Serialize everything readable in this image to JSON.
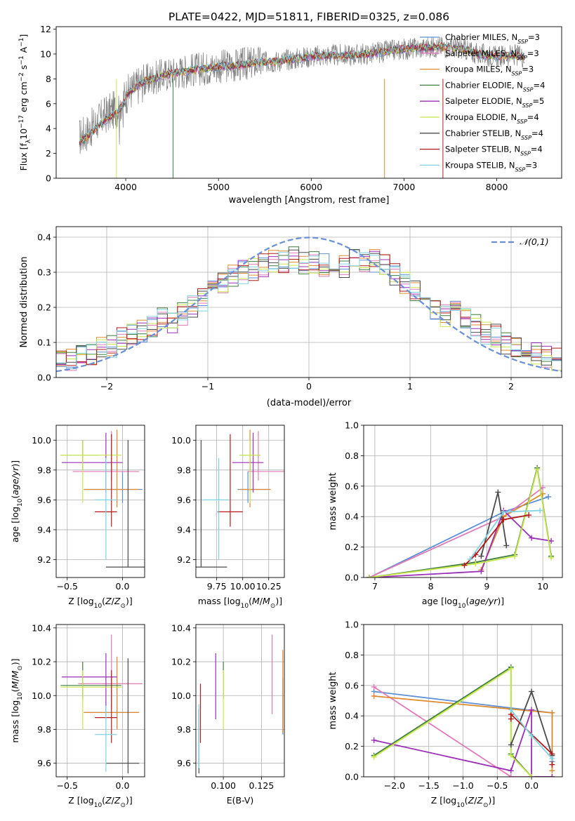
{
  "figure": {
    "title": "PLATE=0422, MJD=51811, FIBERID=0325, z=0.086"
  },
  "colors": {
    "miles_chabrier": "#5b8fd6",
    "miles_salpeter": "#e07ab8",
    "miles_kroupa": "#e08a2e",
    "elodie_chabrier": "#3f7d3f",
    "elodie_salpeter": "#9b2fb8",
    "elodie_kroupa": "#c8e84a",
    "stelib_chabrier": "#4a4a4a",
    "stelib_salpeter": "#b51a1a",
    "stelib_kroupa": "#7fd3e0",
    "data_spectrum": "#808080",
    "normal_curve": "#6a8fd9"
  },
  "chart_data": [
    {
      "id": "spectrum",
      "type": "line",
      "xlabel": "wavelength [Angstrom, rest frame]",
      "ylabel": "Flux [f_λ 10^-17 erg cm^-2 s^-1 A^-1]",
      "xlim": [
        3250,
        8700
      ],
      "ylim": [
        0,
        12.2
      ],
      "xticks": [
        4000,
        5000,
        6000,
        7000,
        8000
      ],
      "yticks": [
        0,
        2,
        4,
        6,
        8,
        10,
        12
      ],
      "legend": [
        "Chabrier MILES, N_SSP=3",
        "Salpeter MILES, N_SSP=3",
        "Kroupa MILES, N_SSP=3",
        "Chabrier ELODIE, N_SSP=4",
        "Salpeter ELODIE, N_SSP=5",
        "Kroupa ELODIE, N_SSP=4",
        "Chabrier STELIB, N_SSP=4",
        "Salpeter STELIB, N_SSP=4",
        "Kroupa STELIB, N_SSP=3"
      ],
      "legend_placement": "right",
      "series_continuum": {
        "x": [
          3500,
          3600,
          3700,
          3800,
          3900,
          4000,
          4100,
          4200,
          4400,
          4600,
          4800,
          5000,
          5200,
          5400,
          5600,
          5800,
          6000,
          6200,
          6400,
          6600,
          6800,
          7000,
          7200,
          7400,
          7600,
          7800,
          8000,
          8200,
          8300
        ],
        "y": [
          3.3,
          3.8,
          4.6,
          5.2,
          5.6,
          6.7,
          7.3,
          7.8,
          8.3,
          8.6,
          8.8,
          9.0,
          9.1,
          9.3,
          9.4,
          9.6,
          9.8,
          9.9,
          9.9,
          10.0,
          10.2,
          10.4,
          10.5,
          10.6,
          10.5,
          10.0,
          9.8,
          9.9,
          9.8
        ]
      }
    },
    {
      "id": "residuals",
      "type": "line",
      "xlabel": "(data-model)/error",
      "ylabel": "Normed distribution",
      "xlim": [
        -2.5,
        2.5
      ],
      "ylim": [
        0,
        0.43
      ],
      "xticks": [
        -2,
        -1,
        0,
        1,
        2
      ],
      "yticks": [
        0.0,
        0.1,
        0.2,
        0.3,
        0.4
      ],
      "legend_label": "𝒩(0,1)",
      "legend_placement": "top-right",
      "curve": {
        "mean": 0,
        "sigma": 1
      },
      "hist_bins_x": [
        -2.5,
        -2.4,
        -2.3,
        -2.2,
        -2.1,
        -2.0,
        -1.9,
        -1.8,
        -1.7,
        -1.6,
        -1.5,
        -1.4,
        -1.3,
        -1.2,
        -1.1,
        -1.0,
        -0.9,
        -0.8,
        -0.7,
        -0.6,
        -0.5,
        -0.4,
        -0.3,
        -0.2,
        -0.1,
        0.0,
        0.1,
        0.2,
        0.3,
        0.4,
        0.5,
        0.6,
        0.7,
        0.8,
        0.9,
        1.0,
        1.1,
        1.2,
        1.3,
        1.4,
        1.5,
        1.6,
        1.7,
        1.8,
        1.9,
        2.0,
        2.1,
        2.2,
        2.3,
        2.4,
        2.5
      ],
      "hist_base": [
        0.05,
        0.055,
        0.06,
        0.07,
        0.08,
        0.09,
        0.11,
        0.12,
        0.13,
        0.15,
        0.17,
        0.16,
        0.18,
        0.2,
        0.22,
        0.25,
        0.27,
        0.29,
        0.3,
        0.31,
        0.32,
        0.33,
        0.33,
        0.34,
        0.33,
        0.33,
        0.32,
        0.33,
        0.32,
        0.34,
        0.33,
        0.33,
        0.32,
        0.29,
        0.27,
        0.25,
        0.22,
        0.2,
        0.18,
        0.19,
        0.17,
        0.15,
        0.13,
        0.12,
        0.1,
        0.08,
        0.08,
        0.07,
        0.06,
        0.05
      ]
    },
    {
      "id": "age_vs_Z",
      "type": "scatter",
      "xlabel": "Z [log10(Z/Z☉)]",
      "ylabel": "age [log10(age/yr)]",
      "xlim": [
        -0.6,
        0.2
      ],
      "ylim": [
        9.08,
        10.1
      ],
      "xticks": [
        -0.5,
        0.0
      ],
      "yticks": [
        9.2,
        9.4,
        9.6,
        9.8,
        10.0
      ],
      "points": [
        {
          "series": "Chabrier MILES",
          "x": 0.0,
          "y": 9.67,
          "xerr": [
            0.35,
            0.18
          ],
          "yerr": [
            0.09,
            0.12
          ]
        },
        {
          "series": "Salpeter MILES",
          "x": -0.1,
          "y": 9.79,
          "xerr": [
            0.35,
            0.25
          ],
          "yerr": [
            0.06,
            0.27
          ]
        },
        {
          "series": "Kroupa MILES",
          "x": -0.05,
          "y": 9.67,
          "xerr": [
            0.3,
            0.2
          ],
          "yerr": [
            0.12,
            0.4
          ]
        },
        {
          "series": "Chabrier ELODIE",
          "x": -0.36,
          "y": 9.9,
          "xerr": [
            0.2,
            0.15
          ],
          "yerr": [
            0.1,
            0.1
          ]
        },
        {
          "series": "Salpeter ELODIE",
          "x": -0.15,
          "y": 9.85,
          "xerr": [
            0.4,
            0.15
          ],
          "yerr": [
            0.2,
            0.2
          ]
        },
        {
          "series": "Kroupa ELODIE",
          "x": -0.36,
          "y": 9.9,
          "xerr": [
            0.2,
            0.35
          ],
          "yerr": [
            0.32,
            0.1
          ]
        },
        {
          "series": "Chabrier STELIB",
          "x": 0.05,
          "y": 9.15,
          "xerr": [
            0.2,
            0.18
          ],
          "yerr": [
            0.0,
            0.85
          ]
        },
        {
          "series": "Salpeter STELIB",
          "x": -0.1,
          "y": 9.52,
          "xerr": [
            0.15,
            0.05
          ],
          "yerr": [
            0.1,
            0.52
          ]
        },
        {
          "series": "Kroupa STELIB",
          "x": -0.15,
          "y": 9.6,
          "xerr": [
            0.1,
            0.1
          ],
          "yerr": [
            0.4,
            0.28
          ]
        }
      ]
    },
    {
      "id": "age_vs_mass",
      "type": "scatter",
      "xlabel": "mass [log10(M/M☉)]",
      "ylabel": "",
      "xlim": [
        9.55,
        10.4
      ],
      "ylim": [
        9.08,
        10.1
      ],
      "xticks": [
        9.75,
        10.0,
        10.25
      ],
      "yticks": [
        9.2,
        9.4,
        9.6,
        9.8,
        10.0
      ],
      "points": [
        {
          "series": "Chabrier MILES",
          "x": 10.05,
          "y": 9.67,
          "xerr": [
            0.1,
            0.2
          ],
          "yerr": [
            0.09,
            0.12
          ]
        },
        {
          "series": "Salpeter MILES",
          "x": 10.15,
          "y": 9.79,
          "xerr": [
            0.1,
            0.25
          ],
          "yerr": [
            0.06,
            0.27
          ]
        },
        {
          "series": "Kroupa MILES",
          "x": 10.07,
          "y": 9.67,
          "xerr": [
            0.1,
            0.2
          ],
          "yerr": [
            0.12,
            0.4
          ]
        },
        {
          "series": "Chabrier ELODIE",
          "x": 10.07,
          "y": 9.9,
          "xerr": [
            0.1,
            0.1
          ],
          "yerr": [
            0.1,
            0.1
          ]
        },
        {
          "series": "Salpeter ELODIE",
          "x": 10.1,
          "y": 9.85,
          "xerr": [
            0.2,
            0.1
          ],
          "yerr": [
            0.2,
            0.2
          ]
        },
        {
          "series": "Kroupa ELODIE",
          "x": 10.07,
          "y": 9.9,
          "xerr": [
            0.1,
            0.1
          ],
          "yerr": [
            0.32,
            0.1
          ]
        },
        {
          "series": "Chabrier STELIB",
          "x": 9.6,
          "y": 9.15,
          "xerr": [
            0.05,
            0.25
          ],
          "yerr": [
            0.0,
            0.85
          ]
        },
        {
          "series": "Salpeter STELIB",
          "x": 9.88,
          "y": 9.52,
          "xerr": [
            0.12,
            0.12
          ],
          "yerr": [
            0.1,
            0.52
          ]
        },
        {
          "series": "Kroupa STELIB",
          "x": 9.77,
          "y": 9.6,
          "xerr": [
            0.15,
            0.1
          ],
          "yerr": [
            0.4,
            0.28
          ]
        }
      ]
    },
    {
      "id": "weight_vs_age",
      "type": "line",
      "xlabel": "age [log10(age/yr)]",
      "ylabel": "mass weight",
      "xlim": [
        6.8,
        10.35
      ],
      "ylim": [
        0,
        1.0
      ],
      "xticks": [
        7,
        8,
        9,
        10
      ],
      "yticks": [
        0.0,
        0.2,
        0.4,
        0.6,
        0.8,
        1.0
      ],
      "series": [
        {
          "key": "miles_chabrier",
          "x": [
            6.9,
            9.3,
            10.1
          ],
          "y": [
            0.0,
            0.43,
            0.53
          ]
        },
        {
          "key": "miles_salpeter",
          "x": [
            6.9,
            9.3,
            10.0
          ],
          "y": [
            0.0,
            0.4,
            0.59
          ]
        },
        {
          "key": "miles_kroupa",
          "x": [
            8.9,
            9.3,
            10.0
          ],
          "y": [
            0.05,
            0.4,
            0.55
          ]
        },
        {
          "key": "elodie_chabrier",
          "x": [
            6.9,
            8.8,
            9.5,
            9.9,
            10.15
          ],
          "y": [
            0.0,
            0.1,
            0.15,
            0.72,
            0.14
          ]
        },
        {
          "key": "elodie_salpeter",
          "x": [
            6.9,
            8.9,
            9.3,
            9.8,
            10.15
          ],
          "y": [
            0.0,
            0.04,
            0.44,
            0.26,
            0.24
          ]
        },
        {
          "key": "elodie_kroupa",
          "x": [
            6.9,
            8.8,
            9.5,
            9.9,
            10.15
          ],
          "y": [
            0.0,
            0.09,
            0.14,
            0.71,
            0.13
          ]
        },
        {
          "key": "stelib_chabrier",
          "x": [
            8.9,
            9.2,
            9.35
          ],
          "y": [
            0.14,
            0.56,
            0.21
          ]
        },
        {
          "key": "stelib_salpeter",
          "x": [
            8.6,
            8.8,
            9.3,
            9.75
          ],
          "y": [
            0.08,
            0.15,
            0.38,
            0.41
          ]
        },
        {
          "key": "stelib_kroupa",
          "x": [
            8.7,
            9.3,
            9.95
          ],
          "y": [
            0.12,
            0.43,
            0.44
          ]
        }
      ]
    },
    {
      "id": "mass_vs_Z",
      "type": "scatter",
      "xlabel": "Z [log10(Z/Z☉)]",
      "ylabel": "mass [log10(M/M☉)]",
      "xlim": [
        -0.6,
        0.2
      ],
      "ylim": [
        9.52,
        10.42
      ],
      "xticks": [
        -0.5,
        0.0
      ],
      "yticks": [
        9.6,
        9.8,
        10.0,
        10.2,
        10.4
      ],
      "points": [
        {
          "series": "Chabrier MILES",
          "x": -0.05,
          "y": 9.9,
          "xerr": [
            0.3,
            0.2
          ],
          "yerr": [
            0.1,
            0.2
          ]
        },
        {
          "series": "Salpeter MILES",
          "x": -0.1,
          "y": 10.07,
          "xerr": [
            0.3,
            0.28
          ],
          "yerr": [
            0.15,
            0.29
          ]
        },
        {
          "series": "Kroupa MILES",
          "x": -0.05,
          "y": 9.9,
          "xerr": [
            0.3,
            0.2
          ],
          "yerr": [
            0.1,
            0.33
          ]
        },
        {
          "series": "Chabrier ELODIE",
          "x": -0.36,
          "y": 10.06,
          "xerr": [
            0.2,
            0.35
          ],
          "yerr": [
            0.08,
            0.14
          ]
        },
        {
          "series": "Salpeter ELODIE",
          "x": -0.15,
          "y": 10.11,
          "xerr": [
            0.4,
            0.1
          ],
          "yerr": [
            0.23,
            0.14
          ]
        },
        {
          "series": "Kroupa ELODIE",
          "x": -0.36,
          "y": 10.05,
          "xerr": [
            0.2,
            0.35
          ],
          "yerr": [
            0.25,
            0.1
          ]
        },
        {
          "series": "Chabrier STELIB",
          "x": 0.05,
          "y": 9.6,
          "xerr": [
            0.2,
            0.1
          ],
          "yerr": [
            0.06,
            0.62
          ]
        },
        {
          "series": "Salpeter STELIB",
          "x": -0.1,
          "y": 9.87,
          "xerr": [
            0.15,
            0.05
          ],
          "yerr": [
            0.15,
            0.28
          ]
        },
        {
          "series": "Kroupa STELIB",
          "x": -0.15,
          "y": 9.77,
          "xerr": [
            0.1,
            0.1
          ],
          "yerr": [
            0.22,
            0.17
          ]
        }
      ]
    },
    {
      "id": "mass_vs_ebv",
      "type": "scatter",
      "xlabel": "E(B-V)",
      "ylabel": "",
      "xlim": [
        0.082,
        0.14
      ],
      "ylim": [
        9.52,
        10.42
      ],
      "xticks": [
        0.1,
        0.125
      ],
      "yticks": [
        9.6,
        9.8,
        10.0,
        10.2,
        10.4
      ],
      "points": [
        {
          "series": "Chabrier MILES",
          "x": 0.139,
          "y": 9.9,
          "yerr": [
            0.13,
            0.2
          ]
        },
        {
          "series": "Salpeter MILES",
          "x": 0.132,
          "y": 10.07,
          "yerr": [
            0.18,
            0.29
          ]
        },
        {
          "series": "Kroupa MILES",
          "x": 0.139,
          "y": 9.9,
          "yerr": [
            0.12,
            0.37
          ]
        },
        {
          "series": "Chabrier ELODIE",
          "x": 0.1,
          "y": 10.06,
          "yerr": [
            0.08,
            0.14
          ]
        },
        {
          "series": "Salpeter ELODIE",
          "x": 0.095,
          "y": 10.11,
          "yerr": [
            0.25,
            0.14
          ]
        },
        {
          "series": "Kroupa ELODIE",
          "x": 0.1,
          "y": 10.05,
          "yerr": [
            0.25,
            0.1
          ]
        },
        {
          "series": "Chabrier STELIB",
          "x": 0.084,
          "y": 9.6,
          "yerr": [
            0.06,
            0.32
          ]
        },
        {
          "series": "Salpeter STELIB",
          "x": 0.085,
          "y": 9.87,
          "yerr": [
            0.15,
            0.2
          ]
        },
        {
          "series": "Kroupa STELIB",
          "x": 0.084,
          "y": 9.77,
          "yerr": [
            0.2,
            0.18
          ]
        }
      ]
    },
    {
      "id": "weight_vs_Z",
      "type": "line",
      "xlabel": "Z [log10(Z/Z☉)]",
      "ylabel": "mass weight",
      "xlim": [
        -2.45,
        0.45
      ],
      "ylim": [
        0,
        1.0
      ],
      "xticks": [
        -2.0,
        -1.5,
        -1.0,
        -0.5,
        0.0
      ],
      "yticks": [
        0.0,
        0.2,
        0.4,
        0.6,
        0.8,
        1.0
      ],
      "series": [
        {
          "key": "miles_chabrier",
          "x": [
            -2.3,
            0.3,
            0.3
          ],
          "y": [
            0.56,
            0.42,
            0.1
          ]
        },
        {
          "key": "miles_salpeter",
          "x": [
            -2.3,
            -0.3,
            0.3
          ],
          "y": [
            0.59,
            0.0,
            0.0
          ]
        },
        {
          "key": "miles_kroupa",
          "x": [
            -2.3,
            0.3,
            0.3
          ],
          "y": [
            0.53,
            0.42,
            0.04
          ]
        },
        {
          "key": "elodie_chabrier",
          "x": [
            -2.3,
            -0.3,
            -0.3,
            0.0
          ],
          "y": [
            0.14,
            0.72,
            0.15,
            0.0
          ]
        },
        {
          "key": "elodie_salpeter",
          "x": [
            -2.3,
            -0.3,
            0.0,
            0.0,
            0.3
          ],
          "y": [
            0.24,
            0.04,
            0.44,
            0.0,
            0.0
          ]
        },
        {
          "key": "elodie_kroupa",
          "x": [
            -2.3,
            -0.3,
            -0.3,
            0.0
          ],
          "y": [
            0.13,
            0.71,
            0.14,
            0.0
          ]
        },
        {
          "key": "stelib_chabrier",
          "x": [
            -0.3,
            0.0,
            0.3
          ],
          "y": [
            0.21,
            0.56,
            0.14
          ]
        },
        {
          "key": "stelib_salpeter",
          "x": [
            -0.3,
            -0.3,
            0.3,
            0.3
          ],
          "y": [
            0.38,
            0.41,
            0.15,
            0.08
          ]
        },
        {
          "key": "stelib_kroupa",
          "x": [
            -0.3,
            0.0,
            0.3
          ],
          "y": [
            0.44,
            0.27,
            0.12
          ]
        }
      ]
    }
  ]
}
